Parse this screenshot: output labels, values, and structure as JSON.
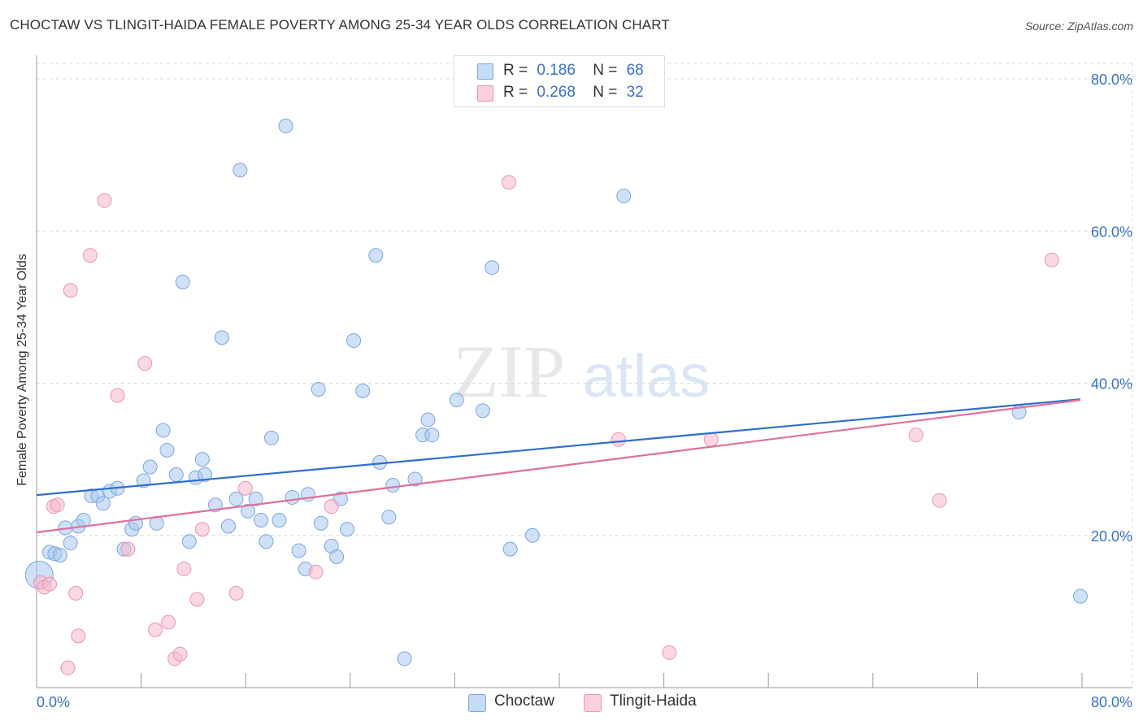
{
  "title": "CHOCTAW VS TLINGIT-HAIDA FEMALE POVERTY AMONG 25-34 YEAR OLDS CORRELATION CHART",
  "source": "Source: ZipAtlas.com",
  "watermark": {
    "zip": "ZIP",
    "atlas": "atlas"
  },
  "legend": {
    "rows": [
      {
        "r_label": "R =",
        "r_value": "0.186",
        "n_label": "N =",
        "n_value": "68",
        "color": "#a9c8f0"
      },
      {
        "r_label": "R =",
        "r_value": "0.268",
        "n_label": "N =",
        "n_value": "32",
        "color": "#f5b8cb"
      }
    ]
  },
  "bottom_legend": [
    {
      "label": "Choctaw",
      "color": "#a9c8f0"
    },
    {
      "label": "Tlingit-Haida",
      "color": "#f5b8cb"
    }
  ],
  "chart_data": {
    "type": "scatter",
    "title": "CHOCTAW VS TLINGIT-HAIDA FEMALE POVERTY AMONG 25-34 YEAR OLDS CORRELATION CHART",
    "xlabel": "",
    "ylabel": "Female Poverty Among 25-34 Year Olds",
    "xlim": [
      0,
      80
    ],
    "ylim": [
      0,
      80
    ],
    "x_tick_labels": [
      "0.0%",
      "80.0%"
    ],
    "y_ticks": [
      20,
      40,
      60,
      80
    ],
    "y_tick_labels": [
      "20.0%",
      "40.0%",
      "60.0%",
      "80.0%"
    ],
    "grid": true,
    "legend_position": "top-center",
    "series": [
      {
        "name": "Choctaw",
        "color": "#a9c8f0",
        "edge_color": "#7aa7e0",
        "trend_color": "#2f6fcf",
        "trend": {
          "x": [
            0,
            80
          ],
          "y": [
            25.3,
            37.9
          ]
        },
        "points": [
          [
            0.2,
            14.8
          ],
          [
            1,
            17.8
          ],
          [
            1.4,
            17.6
          ],
          [
            1.8,
            17.4
          ],
          [
            2.2,
            21
          ],
          [
            2.6,
            19
          ],
          [
            3.2,
            21.2
          ],
          [
            3.6,
            22
          ],
          [
            4.2,
            25.2
          ],
          [
            4.7,
            25.2
          ],
          [
            5.1,
            24.2
          ],
          [
            5.6,
            25.8
          ],
          [
            6.2,
            26.2
          ],
          [
            6.7,
            18.2
          ],
          [
            7.3,
            20.8
          ],
          [
            7.6,
            21.6
          ],
          [
            8.2,
            27.2
          ],
          [
            8.7,
            29
          ],
          [
            9.2,
            21.6
          ],
          [
            9.7,
            33.8
          ],
          [
            10,
            31.2
          ],
          [
            10.7,
            28
          ],
          [
            11.2,
            53.3
          ],
          [
            11.7,
            19.2
          ],
          [
            12.2,
            27.6
          ],
          [
            12.7,
            30
          ],
          [
            12.9,
            28
          ],
          [
            13.7,
            24
          ],
          [
            14.2,
            46
          ],
          [
            14.7,
            21.2
          ],
          [
            15.3,
            24.8
          ],
          [
            15.6,
            68
          ],
          [
            16.2,
            23.2
          ],
          [
            16.8,
            24.8
          ],
          [
            17.2,
            22
          ],
          [
            17.6,
            19.2
          ],
          [
            18,
            32.8
          ],
          [
            18.6,
            22
          ],
          [
            19.1,
            73.8
          ],
          [
            19.6,
            25
          ],
          [
            20.1,
            18
          ],
          [
            20.6,
            15.6
          ],
          [
            20.8,
            25.4
          ],
          [
            21.6,
            39.2
          ],
          [
            21.8,
            21.6
          ],
          [
            22.6,
            18.6
          ],
          [
            23,
            17.2
          ],
          [
            23.3,
            24.8
          ],
          [
            23.8,
            20.8
          ],
          [
            24.3,
            45.6
          ],
          [
            25,
            39
          ],
          [
            26,
            56.8
          ],
          [
            26.3,
            29.6
          ],
          [
            27,
            22.4
          ],
          [
            27.3,
            26.6
          ],
          [
            28.2,
            3.8
          ],
          [
            29,
            27.4
          ],
          [
            29.6,
            33.2
          ],
          [
            30,
            35.2
          ],
          [
            30.3,
            33.2
          ],
          [
            32.2,
            37.8
          ],
          [
            34.2,
            36.4
          ],
          [
            34.9,
            55.2
          ],
          [
            36.3,
            18.2
          ],
          [
            38,
            20
          ],
          [
            45,
            64.6
          ],
          [
            75.3,
            36.2
          ],
          [
            80,
            12
          ]
        ]
      },
      {
        "name": "Tlingit-Haida",
        "color": "#f5b8cb",
        "edge_color": "#ef93b0",
        "trend_color": "#e0709a",
        "trend": {
          "x": [
            0,
            80
          ],
          "y": [
            20.4,
            37.8
          ]
        },
        "points": [
          [
            0.3,
            13.8
          ],
          [
            0.6,
            13.2
          ],
          [
            1,
            13.6
          ],
          [
            1.3,
            23.8
          ],
          [
            1.6,
            24
          ],
          [
            2.4,
            2.6
          ],
          [
            2.6,
            52.2
          ],
          [
            3,
            12.4
          ],
          [
            3.2,
            6.8
          ],
          [
            4.1,
            56.8
          ],
          [
            5.2,
            64
          ],
          [
            6.2,
            38.4
          ],
          [
            7,
            18.2
          ],
          [
            8.3,
            42.6
          ],
          [
            9.1,
            7.6
          ],
          [
            10.1,
            8.6
          ],
          [
            10.6,
            3.8
          ],
          [
            11,
            4.4
          ],
          [
            11.3,
            15.6
          ],
          [
            12.3,
            11.6
          ],
          [
            12.7,
            20.8
          ],
          [
            15.3,
            12.4
          ],
          [
            16,
            26.2
          ],
          [
            21.4,
            15.2
          ],
          [
            22.6,
            23.8
          ],
          [
            36.2,
            66.4
          ],
          [
            44.6,
            32.6
          ],
          [
            48.5,
            4.6
          ],
          [
            51.7,
            32.6
          ],
          [
            67.4,
            33.2
          ],
          [
            69.2,
            24.6
          ],
          [
            77.8,
            56.2
          ]
        ]
      }
    ]
  }
}
